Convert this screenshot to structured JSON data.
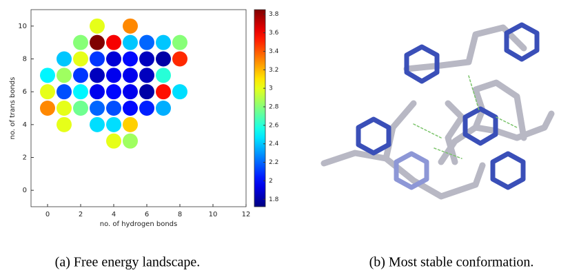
{
  "chart_data": {
    "type": "scatter",
    "x_label": "no. of hydrogen bonds",
    "y_label": "no. of trans bonds",
    "xlim": [
      -1,
      12
    ],
    "ylim": [
      -1,
      11
    ],
    "xticks": [
      0,
      2,
      4,
      6,
      8,
      10,
      12
    ],
    "yticks": [
      0,
      2,
      4,
      6,
      8,
      10
    ],
    "colormap": "jet",
    "clim": [
      1.72,
      3.85
    ],
    "cticks": [
      1.8,
      2,
      2.2,
      2.4,
      2.6,
      2.8,
      3,
      3.2,
      3.4,
      3.6,
      3.8
    ],
    "x": [
      3,
      5,
      2,
      3,
      4,
      5,
      6,
      7,
      8,
      1,
      2,
      3,
      4,
      5,
      6,
      7,
      8,
      0,
      1,
      2,
      3,
      4,
      5,
      6,
      7,
      0,
      1,
      2,
      3,
      4,
      5,
      6,
      7,
      8,
      0,
      1,
      2,
      3,
      4,
      5,
      6,
      7,
      1,
      3,
      4,
      5,
      4,
      5
    ],
    "y": [
      10,
      10,
      9,
      9,
      9,
      9,
      9,
      9,
      9,
      8,
      8,
      8,
      8,
      8,
      8,
      8,
      8,
      7,
      7,
      7,
      7,
      7,
      7,
      7,
      7,
      6,
      6,
      6,
      6,
      6,
      6,
      6,
      6,
      6,
      5,
      5,
      5,
      5,
      5,
      5,
      5,
      5,
      4,
      4,
      4,
      4,
      3,
      3
    ],
    "values": [
      3.0,
      3.3,
      2.8,
      3.85,
      3.6,
      2.4,
      2.2,
      2.4,
      2.8,
      2.4,
      3.0,
      2.1,
      1.9,
      2.0,
      1.85,
      1.8,
      3.5,
      2.5,
      2.85,
      2.1,
      1.85,
      1.95,
      1.95,
      1.85,
      2.6,
      3.0,
      2.15,
      2.5,
      1.95,
      2.0,
      1.95,
      1.8,
      3.55,
      2.45,
      3.3,
      3.0,
      2.75,
      2.2,
      2.15,
      2.0,
      2.05,
      2.35,
      3.0,
      2.45,
      2.45,
      3.15,
      3.0,
      2.85
    ]
  },
  "captions": [
    "(a) Free energy landscape.",
    "(b) Most stable conformation."
  ]
}
